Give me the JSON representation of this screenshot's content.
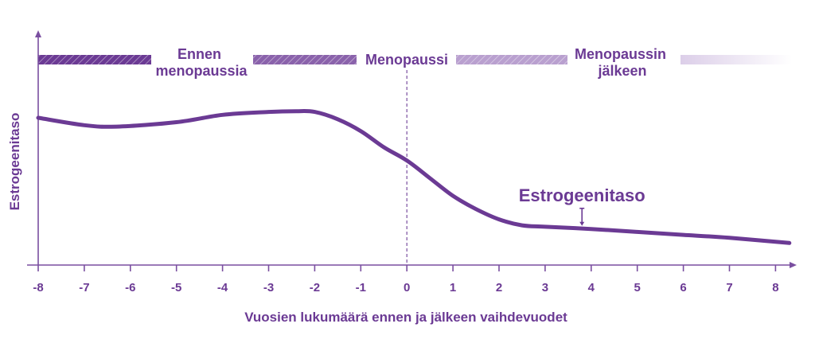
{
  "chart_data": {
    "type": "line",
    "title": "",
    "xlabel": "Vuosien lukumäärä ennen ja jälkeen vaihdevuodet",
    "ylabel": "Estrogeenitaso",
    "xlim": [
      -8,
      8.3
    ],
    "x_ticks": [
      -8,
      -7,
      -6,
      -5,
      -4,
      -3,
      -2,
      -1,
      0,
      1,
      2,
      3,
      4,
      5,
      6,
      7,
      8
    ],
    "x_tick_labels": [
      "-8",
      "-7",
      "-6",
      "-5",
      "-4",
      "-3",
      "-2",
      "-1",
      "0",
      "1",
      "2",
      "3",
      "4",
      "5",
      "6",
      "7",
      "8"
    ],
    "grid": false,
    "legend": "none",
    "reference_line": {
      "x": 0
    },
    "series": [
      {
        "x": [
          -8,
          -7,
          -6.3,
          -5,
          -4,
          -3,
          -2.4,
          -2,
          -1.5,
          -1,
          -0.5,
          0,
          0.5,
          1,
          1.5,
          2,
          2.5,
          3,
          4,
          5,
          6,
          7,
          8.3
        ],
        "y": [
          100,
          95,
          94,
          97,
          102,
          104,
          104.5,
          104,
          99,
          91,
          80,
          71,
          59,
          47,
          38,
          31,
          27,
          26,
          24.5,
          22.5,
          20.5,
          18.5,
          15
        ]
      }
    ],
    "annotation": {
      "text": "Estrogeenitaso",
      "x": 3.8,
      "y": 25
    },
    "phases": [
      {
        "label_lines": [
          "Ennen",
          "menopaussia"
        ]
      },
      {
        "label_lines": [
          "Menopaussi"
        ]
      },
      {
        "label_lines": [
          "Menopaussin",
          "jälkeen"
        ]
      }
    ],
    "colors": {
      "line": "#6b3a94",
      "axis": "#7a4fa0",
      "text": "#6b3a94",
      "bar_dark": "#6b3a94",
      "bar_mid": "#8a62ab",
      "bar_light": "#b9a0cf",
      "bar_fade": "#e6dcf0"
    }
  }
}
